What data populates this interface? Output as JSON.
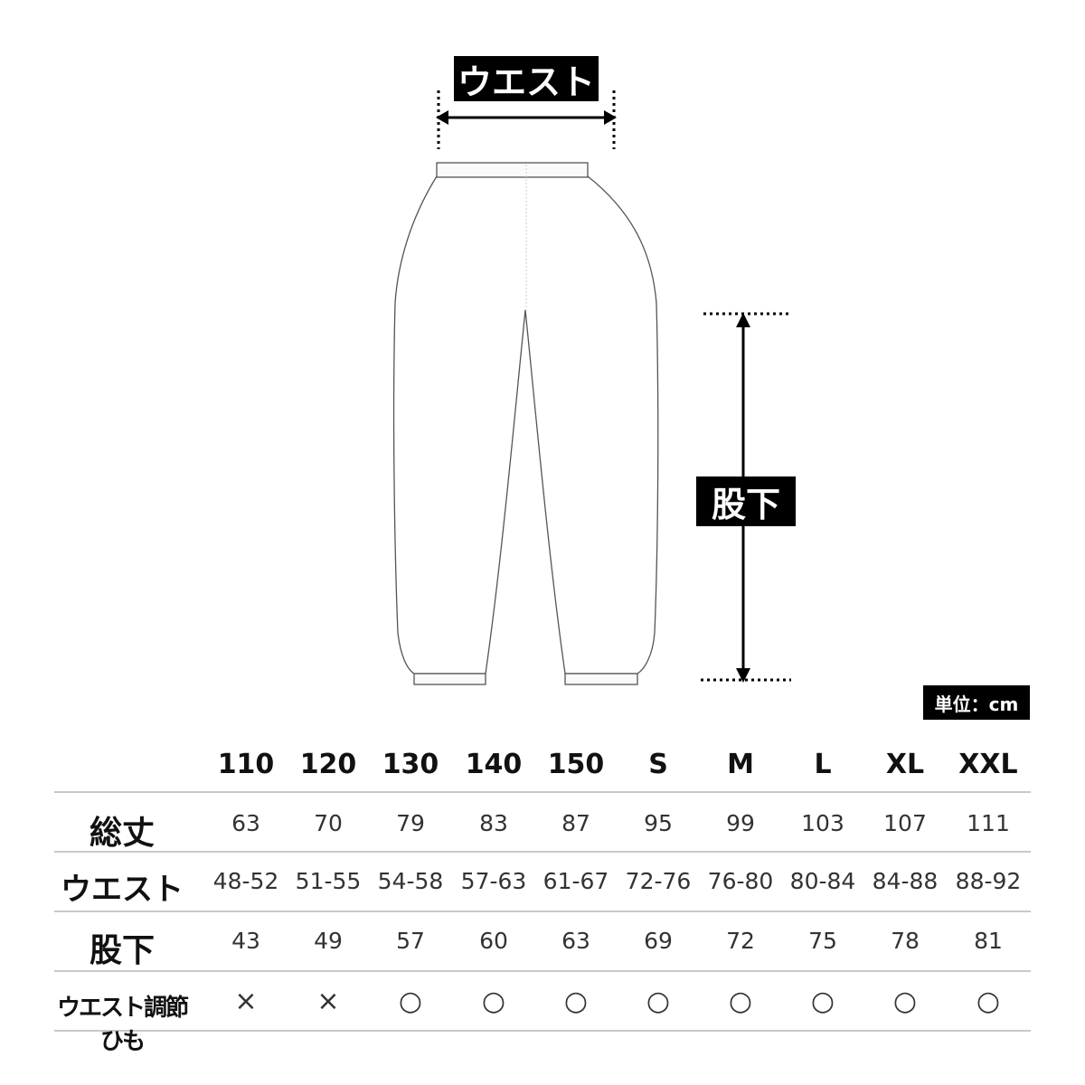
{
  "diagram": {
    "waist_label": "ウエスト",
    "inseam_label": "股下",
    "unit_label": "単位：cm"
  },
  "table": {
    "columns": [
      "110",
      "120",
      "130",
      "140",
      "150",
      "S",
      "M",
      "L",
      "XL",
      "XXL"
    ],
    "rows": [
      {
        "label": "総丈",
        "values": [
          "63",
          "70",
          "79",
          "83",
          "87",
          "95",
          "99",
          "103",
          "107",
          "111"
        ]
      },
      {
        "label": "ウエスト",
        "values": [
          "48-52",
          "51-55",
          "54-58",
          "57-63",
          "61-67",
          "72-76",
          "76-80",
          "80-84",
          "84-88",
          "88-92"
        ]
      },
      {
        "label": "股下",
        "values": [
          "43",
          "49",
          "57",
          "60",
          "63",
          "69",
          "72",
          "75",
          "78",
          "81"
        ]
      },
      {
        "label": "ウエスト調節ひも",
        "values": [
          "×",
          "×",
          "○",
          "○",
          "○",
          "○",
          "○",
          "○",
          "○",
          "○"
        ]
      }
    ]
  }
}
